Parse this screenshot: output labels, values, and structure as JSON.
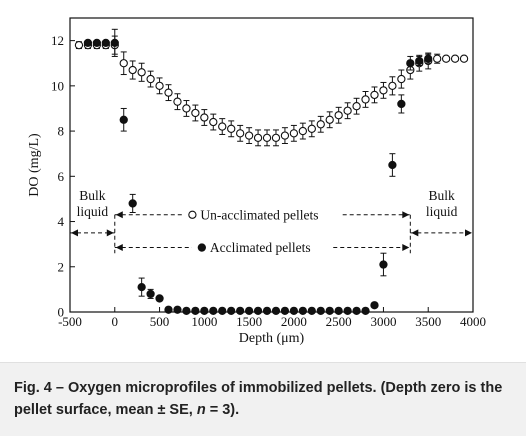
{
  "chart_data": {
    "type": "scatter",
    "xlabel": "Depth (μm)",
    "ylabel": "DO (mg/L)",
    "xlim": [
      -500,
      4000
    ],
    "ylim": [
      0,
      13
    ],
    "xticks": [
      -500,
      0,
      500,
      1000,
      1500,
      2000,
      2500,
      3000,
      3500,
      4000
    ],
    "yticks": [
      0,
      2,
      4,
      6,
      8,
      10,
      12
    ],
    "grid": false,
    "series": [
      {
        "name": "Un-acclimated pellets",
        "marker": "open-circle",
        "x": [
          -400,
          -300,
          -200,
          -100,
          0,
          100,
          200,
          300,
          400,
          500,
          600,
          700,
          800,
          900,
          1000,
          1100,
          1200,
          1300,
          1400,
          1500,
          1600,
          1700,
          1800,
          1900,
          2000,
          2100,
          2200,
          2300,
          2400,
          2500,
          2600,
          2700,
          2800,
          2900,
          3000,
          3100,
          3200,
          3300,
          3400,
          3500,
          3600,
          3700,
          3800,
          3900
        ],
        "y": [
          11.8,
          11.8,
          11.8,
          11.8,
          11.8,
          11.0,
          10.7,
          10.6,
          10.3,
          10.0,
          9.7,
          9.3,
          9.0,
          8.8,
          8.6,
          8.4,
          8.2,
          8.1,
          7.9,
          7.8,
          7.7,
          7.7,
          7.7,
          7.8,
          7.9,
          8.0,
          8.1,
          8.3,
          8.5,
          8.7,
          8.9,
          9.1,
          9.4,
          9.6,
          9.8,
          10.0,
          10.3,
          10.7,
          11.0,
          11.1,
          11.2,
          11.2,
          11.2,
          11.2
        ],
        "err": [
          0.15,
          0.15,
          0.15,
          0.15,
          0.4,
          0.5,
          0.4,
          0.4,
          0.35,
          0.35,
          0.35,
          0.35,
          0.35,
          0.35,
          0.35,
          0.35,
          0.35,
          0.35,
          0.35,
          0.35,
          0.35,
          0.35,
          0.35,
          0.35,
          0.35,
          0.35,
          0.35,
          0.35,
          0.35,
          0.35,
          0.35,
          0.35,
          0.35,
          0.35,
          0.35,
          0.4,
          0.4,
          0.4,
          0.35,
          0.35,
          0.2,
          0.1,
          0.1,
          0.1
        ]
      },
      {
        "name": "Acclimated pellets",
        "marker": "filled-circle",
        "x": [
          -300,
          -200,
          -100,
          0,
          100,
          200,
          300,
          400,
          500,
          600,
          700,
          800,
          900,
          1000,
          1100,
          1200,
          1300,
          1400,
          1500,
          1600,
          1700,
          1800,
          1900,
          2000,
          2100,
          2200,
          2300,
          2400,
          2500,
          2600,
          2700,
          2800,
          2900,
          3000,
          3100,
          3200,
          3300,
          3400,
          3500
        ],
        "y": [
          11.9,
          11.9,
          11.9,
          11.9,
          8.5,
          4.8,
          1.1,
          0.8,
          0.6,
          0.1,
          0.1,
          0.05,
          0.05,
          0.05,
          0.05,
          0.05,
          0.05,
          0.05,
          0.05,
          0.05,
          0.05,
          0.05,
          0.05,
          0.05,
          0.05,
          0.05,
          0.05,
          0.05,
          0.05,
          0.05,
          0.05,
          0.05,
          0.3,
          2.1,
          6.5,
          9.2,
          11.0,
          11.1,
          11.2
        ],
        "err": [
          0.1,
          0.1,
          0.1,
          0.6,
          0.5,
          0.4,
          0.4,
          0.2,
          0.1,
          0,
          0,
          0,
          0,
          0,
          0,
          0,
          0,
          0,
          0,
          0,
          0,
          0,
          0,
          0,
          0,
          0,
          0,
          0,
          0,
          0,
          0,
          0,
          0.1,
          0.5,
          0.5,
          0.4,
          0.3,
          0.2,
          0.2
        ]
      }
    ],
    "annotations": {
      "bulk_left": [
        "Bulk",
        "liquid"
      ],
      "bulk_right": [
        "Bulk",
        "liquid"
      ],
      "label_unacclimated": "Un-acclimated pellets",
      "label_acclimated": "Acclimated pellets",
      "arrow_level": 3.5,
      "boundary_left": 0,
      "boundary_right": 3300
    }
  },
  "caption": {
    "prefix": "Fig. 4 – Oxygen microprofiles of immobilized pellets. (Depth zero is the pellet surface, mean ± SE, ",
    "n_symbol": "n",
    "suffix": " = 3)."
  }
}
